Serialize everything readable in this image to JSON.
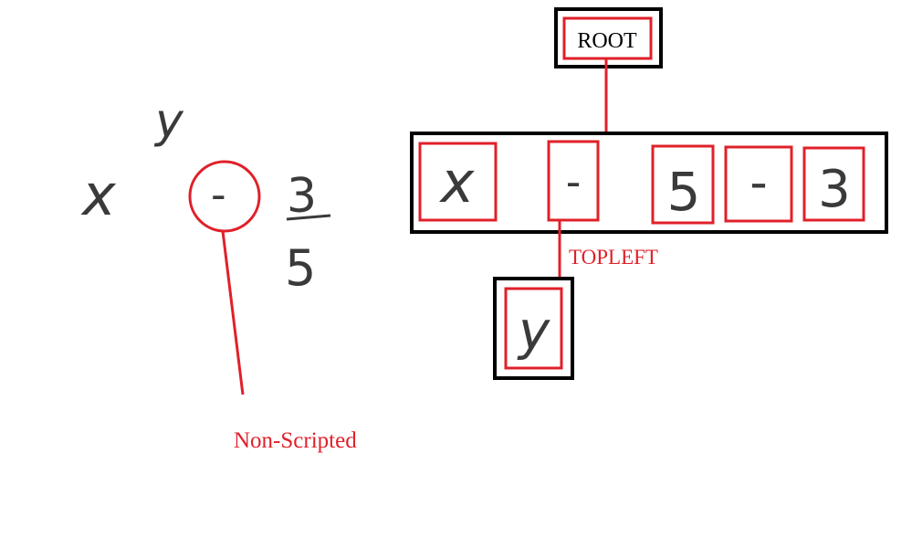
{
  "left_expression": {
    "base": "x",
    "superscript": "y",
    "operator": "-",
    "fraction_numerator": "3",
    "fraction_denominator": "5",
    "annotation": "Non-Scripted"
  },
  "tree": {
    "root_label": "ROOT",
    "main_row": [
      "x",
      "-",
      "5",
      "-",
      "3"
    ],
    "child_label": "TOPLEFT",
    "child_symbol": "y"
  },
  "colors": {
    "highlight": "#e0202a",
    "box": "#000000",
    "ink": "#3a3a3a"
  }
}
